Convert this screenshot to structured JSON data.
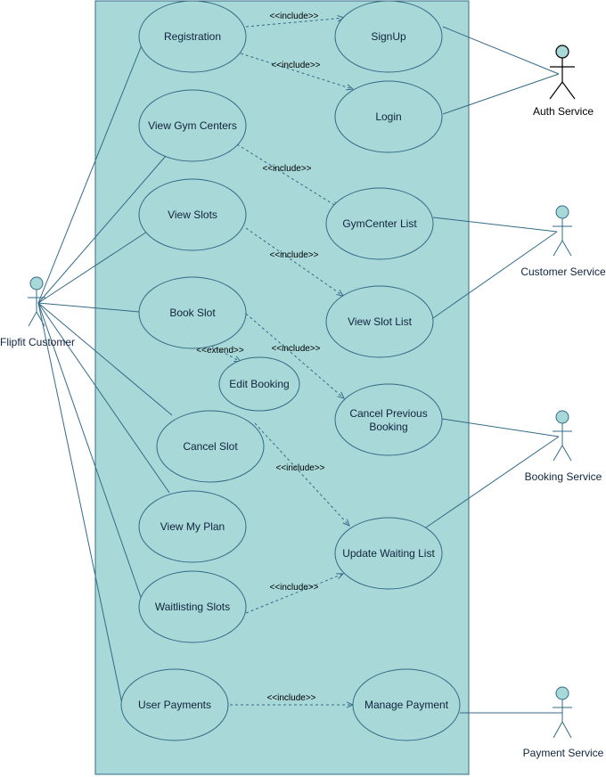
{
  "colors": {
    "boundary_fill": "#a8d8d8",
    "stroke": "#336b87",
    "actor_fill": "#a8d8d8"
  },
  "actors": {
    "customer": "Flipfit Customer",
    "auth": "Auth Service",
    "customer_service": "Customer Service",
    "booking": "Booking Service",
    "payment": "Payment Service"
  },
  "use_cases": {
    "registration": "Registration",
    "signup": "SignUp",
    "login": "Login",
    "view_gym_centers": "View Gym Centers",
    "gymcenter_list": "GymCenter List",
    "view_slots": "View Slots",
    "view_slot_list": "View Slot List",
    "book_slot": "Book Slot",
    "edit_booking": "Edit Booking",
    "cancel_previous_booking_1": "Cancel Previous",
    "cancel_previous_booking_2": "Booking",
    "cancel_slot": "Cancel Slot",
    "update_waiting_list": "Update Waiting List",
    "view_my_plan": "View My Plan",
    "waitlisting_slots": "Waitlisting Slots",
    "user_payments": "User Payments",
    "manage_payment": "Manage Payment"
  },
  "relations": {
    "include": "<<include>>",
    "extend": "<<extend>>"
  }
}
